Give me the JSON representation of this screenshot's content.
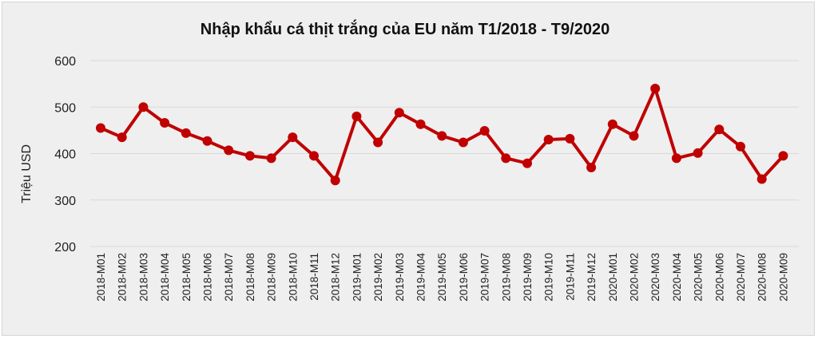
{
  "chart_data": {
    "type": "line",
    "title": "Nhập khẩu cá thịt trắng của EU năm T1/2018 - T9/2020",
    "xlabel": "",
    "ylabel": "Triệu  USD",
    "ylim": [
      200,
      600
    ],
    "yticks": [
      200,
      300,
      400,
      500,
      600
    ],
    "grid": true,
    "legend": "none",
    "line_color": "#c00000",
    "categories": [
      "2018-M01",
      "2018-M02",
      "2018-M03",
      "2018-M04",
      "2018-M05",
      "2018-M06",
      "2018-M07",
      "2018-M08",
      "2018-M09",
      "2018-M10",
      "2018-M11",
      "2018-M12",
      "2019-M01",
      "2019-M02",
      "2019-M03",
      "2019-M04",
      "2019-M05",
      "2019-M06",
      "2019-M07",
      "2019-M08",
      "2019-M09",
      "2019-M10",
      "2019-M11",
      "2019-M12",
      "2020-M01",
      "2020-M02",
      "2020-M03",
      "2020-M04",
      "2020-M05",
      "2020-M06",
      "2020-M07",
      "2020-M08",
      "2020-M09"
    ],
    "series": [
      {
        "values": [
          455,
          435,
          500,
          466,
          444,
          427,
          407,
          395,
          390,
          435,
          395,
          342,
          480,
          424,
          488,
          463,
          438,
          424,
          449,
          390,
          379,
          430,
          432,
          370,
          463,
          438,
          540,
          390,
          401,
          452,
          415,
          345,
          395
        ]
      }
    ]
  }
}
